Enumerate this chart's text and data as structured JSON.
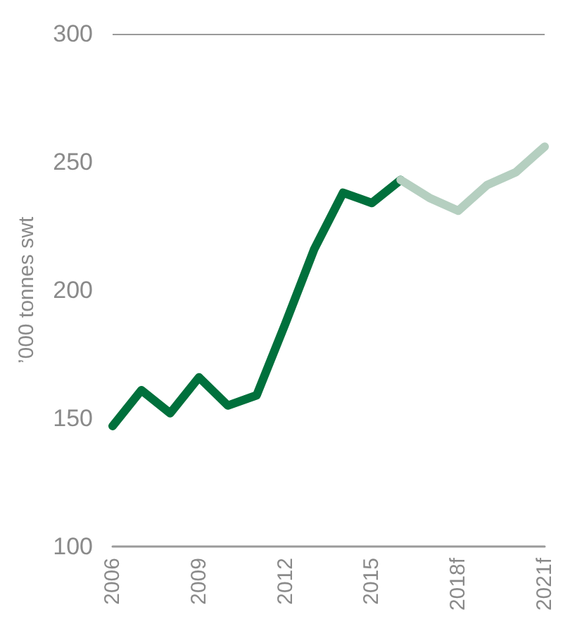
{
  "chart_data": {
    "type": "line",
    "ylabel": "’000 tonnes swt",
    "categories": [
      "2006",
      null,
      null,
      "2009",
      null,
      null,
      "2012",
      null,
      null,
      "2015",
      null,
      null,
      "2018f",
      null,
      null,
      "2021f"
    ],
    "series": [
      {
        "color": "#00703c",
        "values": [
          147,
          161,
          152,
          166,
          155,
          159,
          187,
          216,
          238,
          234,
          243,
          null,
          null,
          null,
          null,
          null
        ]
      },
      {
        "color": "#b5cfc0",
        "values": [
          null,
          null,
          null,
          null,
          null,
          null,
          null,
          null,
          null,
          null,
          243,
          236,
          231,
          241,
          246,
          256
        ]
      }
    ],
    "ylim": [
      100,
      300
    ],
    "yticks": [
      100,
      150,
      200,
      250,
      300
    ],
    "ref_lines": [
      {
        "axis": "y",
        "value": 300,
        "color": "#9a9a9a"
      }
    ],
    "grid": false,
    "marker": "none",
    "line_style": "solid"
  }
}
